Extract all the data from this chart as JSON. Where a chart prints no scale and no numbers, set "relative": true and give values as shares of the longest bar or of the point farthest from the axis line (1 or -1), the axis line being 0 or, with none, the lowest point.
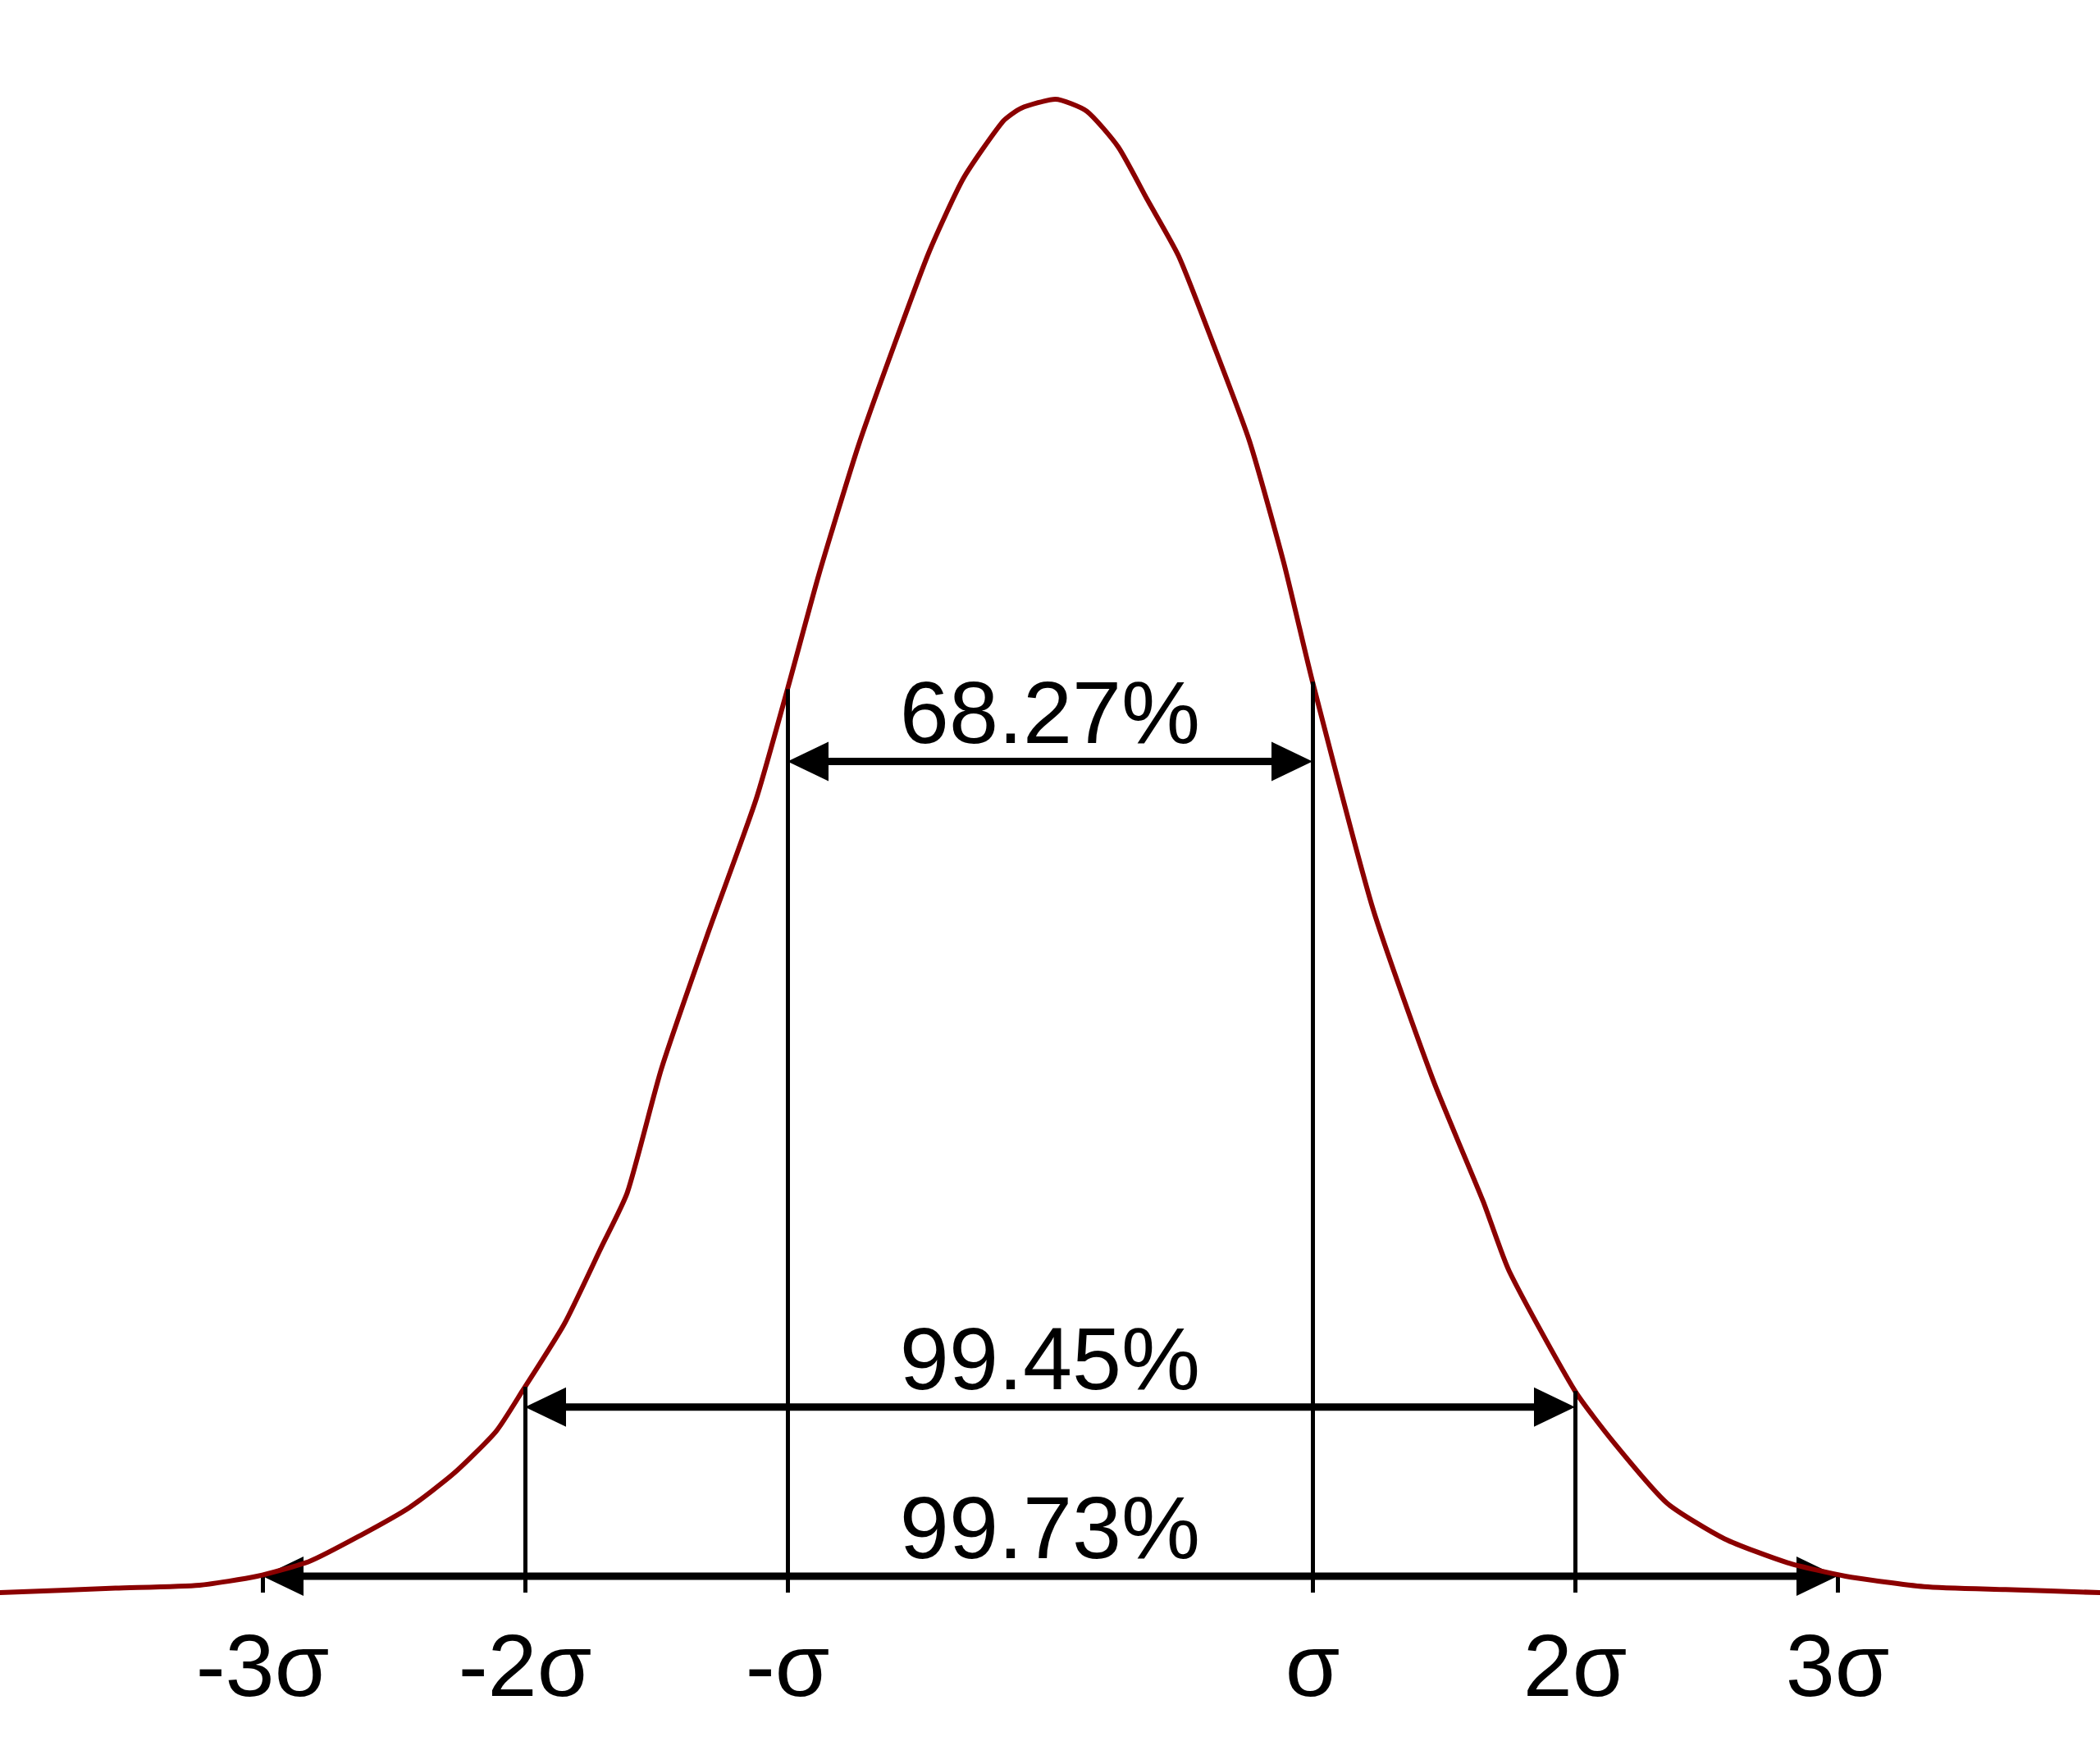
{
  "chart_data": {
    "type": "line",
    "relative": true,
    "marker": "none",
    "x": [
      -4.0,
      -3.56,
      -3.24,
      -3.02,
      -2.82,
      -2.63,
      -2.44,
      -2.27,
      -2.11,
      -2.01,
      -1.85,
      -1.71,
      -1.61,
      -1.48,
      -1.3,
      -1.12,
      -1.0,
      -0.88,
      -0.73,
      -0.59,
      -0.46,
      -0.33,
      -0.18,
      -0.11,
      0.02,
      0.14,
      0.26,
      0.37,
      0.49,
      0.62,
      0.76,
      0.89,
      1.0,
      1.23,
      1.46,
      1.65,
      1.75,
      2.0,
      2.15,
      2.35,
      2.57,
      2.81,
      3.03,
      3.33,
      3.64,
      4.0
    ],
    "series": [
      {
        "color": "#8b0000",
        "values": [
          0,
          0.003,
          0.005,
          0.011,
          0.021,
          0.038,
          0.057,
          0.08,
          0.108,
          0.135,
          0.18,
          0.231,
          0.268,
          0.351,
          0.443,
          0.531,
          0.605,
          0.682,
          0.768,
          0.837,
          0.898,
          0.947,
          0.985,
          0.994,
          1,
          0.992,
          0.968,
          0.933,
          0.895,
          0.837,
          0.771,
          0.69,
          0.61,
          0.458,
          0.343,
          0.262,
          0.215,
          0.135,
          0.1,
          0.06,
          0.036,
          0.02,
          0.011,
          0.004,
          0.002,
          0
        ]
      }
    ],
    "xlim": [
      -4,
      4
    ],
    "xticks": [
      {
        "value": -3,
        "label": "-3σ"
      },
      {
        "value": -2,
        "label": "-2σ"
      },
      {
        "value": -1,
        "label": "-σ"
      },
      {
        "value": 1,
        "label": "σ"
      },
      {
        "value": 2,
        "label": "2σ"
      },
      {
        "value": 3,
        "label": "3σ"
      }
    ],
    "ref_lines": [
      {
        "axis": "x",
        "value": -2,
        "color": "#000000"
      },
      {
        "axis": "x",
        "value": -1,
        "color": "#000000"
      },
      {
        "axis": "x",
        "value": 1,
        "color": "#000000"
      },
      {
        "axis": "x",
        "value": 2,
        "color": "#000000"
      }
    ],
    "annotations": [
      "68.27%",
      "99.45%",
      "99.73%"
    ]
  }
}
